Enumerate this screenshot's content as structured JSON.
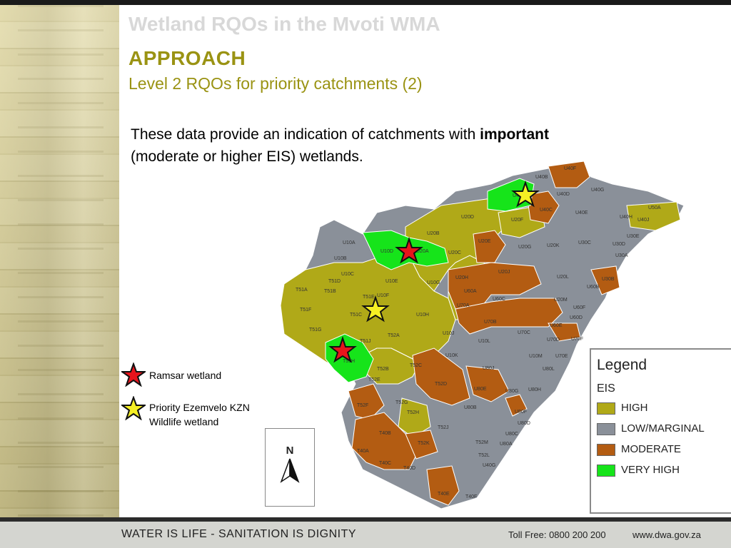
{
  "slide": {
    "faded_title": "Wetland RQOs in the Mvoti WMA",
    "heading": "APPROACH",
    "subheading": "Level 2 RQOs for priority catchments (2)",
    "body_before": "These data provide an indication of catchments with ",
    "body_bold": "important",
    "body_after": "(moderate or higher EIS) wetlands."
  },
  "symbols": {
    "ramsar_label": "Ramsar wetland",
    "priority_label_line1": "Priority Ezemvelo KZN",
    "priority_label_line2": "Wildlife wetland",
    "ramsar_color": "#e8141c",
    "priority_color": "#f5ef24"
  },
  "legend": {
    "title": "Legend",
    "subtitle": "EIS",
    "items": [
      {
        "label": "HIGH",
        "color": "#b0a918"
      },
      {
        "label": "LOW/MARGINAL",
        "color": "#8a9099"
      },
      {
        "label": "MODERATE",
        "color": "#b35c12"
      },
      {
        "label": "VERY HIGH",
        "color": "#16e41a"
      }
    ]
  },
  "north_arrow": {
    "label": "N"
  },
  "map_labels": [
    "U40F",
    "U40B",
    "U40A",
    "U40D",
    "U40G",
    "U40C",
    "U40E",
    "U40H",
    "U50A",
    "U40J",
    "U20D",
    "U20F",
    "U30E",
    "U20B",
    "U20E",
    "U10A",
    "U10D",
    "U20A",
    "U20C",
    "U20G",
    "U20K",
    "U30C",
    "U30A",
    "U30D",
    "U10B",
    "U10C",
    "U20H",
    "U20J",
    "U30B",
    "T51D",
    "U10E",
    "U10G",
    "U20L",
    "T51A",
    "T51B",
    "T51E",
    "U10F",
    "U60A",
    "U60B",
    "U60C",
    "U20M",
    "T51F",
    "U70A",
    "U60F",
    "T51C",
    "U10H",
    "U70B",
    "U60D",
    "U60E",
    "T51G",
    "T52A",
    "U10J",
    "U70C",
    "U70D",
    "U70F",
    "T51J",
    "U10L",
    "U10K",
    "U10M",
    "U70E",
    "T51H",
    "T52B",
    "T52C",
    "U80J",
    "U80L",
    "T52E",
    "T52D",
    "U80E",
    "U80G",
    "U80H",
    "T52F",
    "T52G",
    "U80B",
    "U80F",
    "T52H",
    "U80D",
    "T52J",
    "U80C",
    "T40B",
    "T52K",
    "T52M",
    "U80A",
    "T40A",
    "T52L",
    "T40C",
    "T40D",
    "U40G",
    "T40E",
    "T40F"
  ],
  "footer": {
    "slogan": "WATER IS LIFE - SANITATION IS DIGNITY",
    "toll_free": "Toll Free: 0800 200 200",
    "website": "www.dwa.gov.za"
  }
}
